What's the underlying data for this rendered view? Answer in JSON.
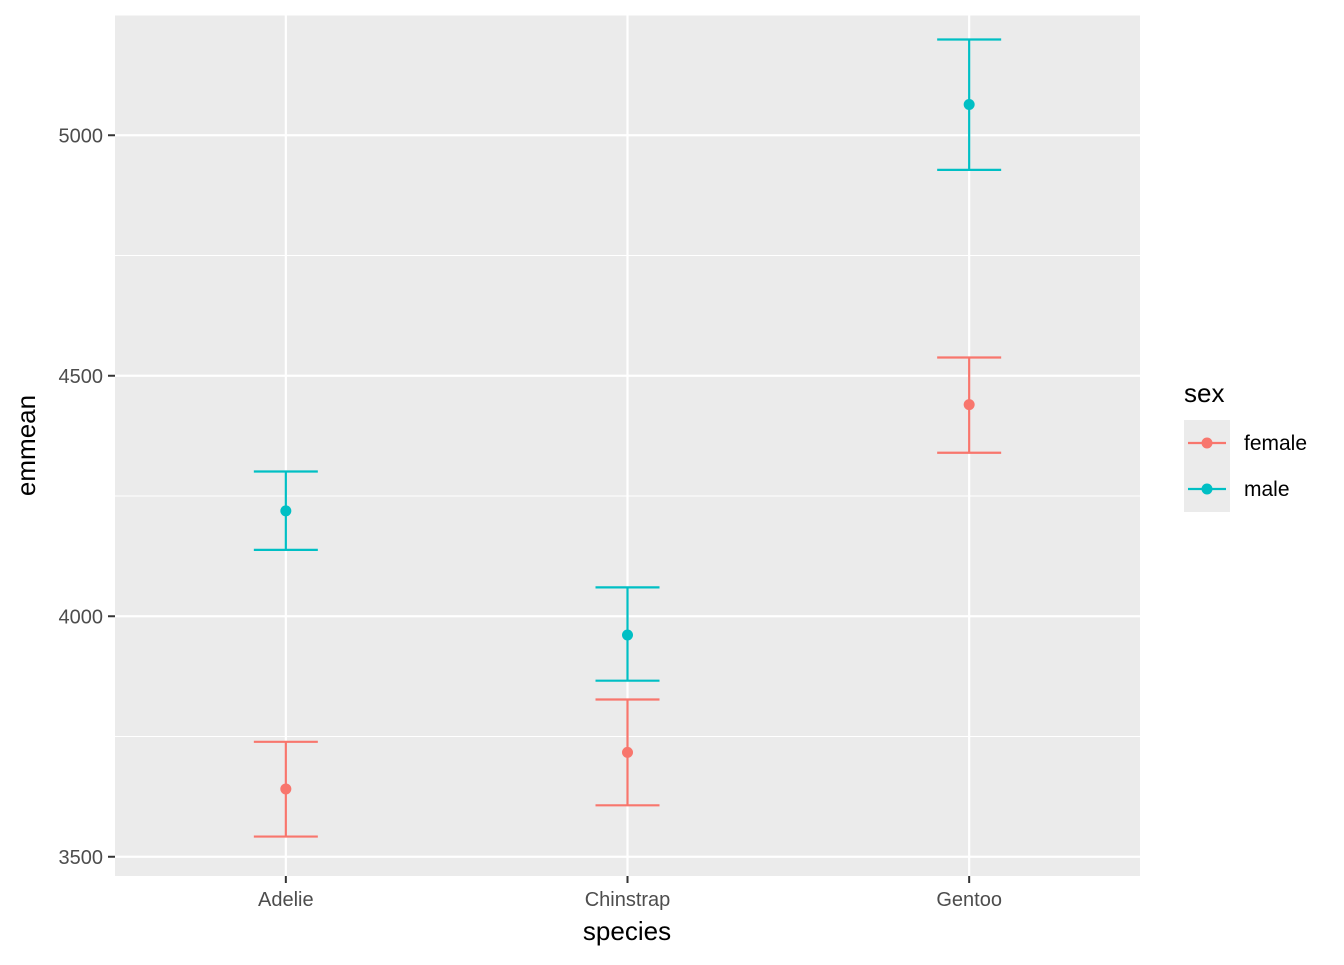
{
  "chart_data": {
    "type": "scatter",
    "subtype": "point-with-errorbars",
    "title": "",
    "xlabel": "species",
    "ylabel": "emmean",
    "categories": [
      "Adelie",
      "Chinstrap",
      "Gentoo"
    ],
    "ylim": [
      3460,
      5250
    ],
    "yticks": [
      3500,
      4000,
      4500,
      5000
    ],
    "ytick_labels": [
      "3500",
      "4000",
      "4500",
      "5000"
    ],
    "grid": true,
    "legend": {
      "title": "sex",
      "position": "right"
    },
    "series": [
      {
        "name": "female",
        "color": "#F8766D",
        "values": [
          3641,
          3717,
          4440
        ],
        "lower": [
          3542,
          3607,
          4340
        ],
        "upper": [
          3739,
          3827,
          4538
        ]
      },
      {
        "name": "male",
        "color": "#00BFC4",
        "values": [
          4219,
          3961,
          5064
        ],
        "lower": [
          4138,
          3866,
          4928
        ],
        "upper": [
          4301,
          4060,
          5199
        ]
      }
    ]
  }
}
